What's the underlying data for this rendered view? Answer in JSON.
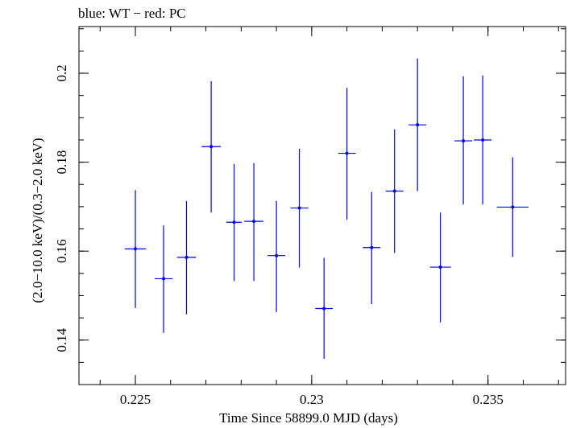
{
  "chart_data": {
    "type": "scatter",
    "title": "blue: WT − red: PC",
    "xlabel": "Time Since 58899.0 MJD (days)",
    "ylabel": "(2.0−10.0 keV)/(0.3−2.0 keV)",
    "xlim": [
      0.2234,
      0.2372
    ],
    "ylim": [
      0.13,
      0.2105
    ],
    "x_ticks": [
      {
        "value": 0.225,
        "label": "0.225"
      },
      {
        "value": 0.23,
        "label": "0.23"
      },
      {
        "value": 0.235,
        "label": "0.235"
      }
    ],
    "y_ticks": [
      {
        "value": 0.14,
        "label": "0.14"
      },
      {
        "value": 0.16,
        "label": "0.16"
      },
      {
        "value": 0.18,
        "label": "0.18"
      },
      {
        "value": 0.2,
        "label": "0.2"
      }
    ],
    "x_minor_step": 0.001,
    "y_minor_step": 0.005,
    "grid": false,
    "colors": {
      "series": "#0000ff",
      "axes": "#000000"
    },
    "series": [
      {
        "color": "#0000ff",
        "points": [
          {
            "x": 0.225,
            "xerr": 0.0003,
            "y": 0.1605,
            "ylo": 0.1472,
            "yhi": 0.1737
          },
          {
            "x": 0.2258,
            "xerr": 0.00025,
            "y": 0.1538,
            "ylo": 0.1416,
            "yhi": 0.1658
          },
          {
            "x": 0.22645,
            "xerr": 0.00027,
            "y": 0.1586,
            "ylo": 0.1458,
            "yhi": 0.1713
          },
          {
            "x": 0.22715,
            "xerr": 0.00027,
            "y": 0.1835,
            "ylo": 0.1687,
            "yhi": 0.1982
          },
          {
            "x": 0.2278,
            "xerr": 0.00022,
            "y": 0.1665,
            "ylo": 0.1533,
            "yhi": 0.1796
          },
          {
            "x": 0.22836,
            "xerr": 0.00027,
            "y": 0.1667,
            "ylo": 0.1533,
            "yhi": 0.1798
          },
          {
            "x": 0.229,
            "xerr": 0.00025,
            "y": 0.159,
            "ylo": 0.1463,
            "yhi": 0.1713
          },
          {
            "x": 0.22965,
            "xerr": 0.00025,
            "y": 0.1697,
            "ylo": 0.1563,
            "yhi": 0.183
          },
          {
            "x": 0.23035,
            "xerr": 0.00025,
            "y": 0.1471,
            "ylo": 0.1358,
            "yhi": 0.1585
          },
          {
            "x": 0.231,
            "xerr": 0.00025,
            "y": 0.182,
            "ylo": 0.1671,
            "yhi": 0.1967
          },
          {
            "x": 0.2317,
            "xerr": 0.00025,
            "y": 0.1608,
            "ylo": 0.1481,
            "yhi": 0.1733
          },
          {
            "x": 0.23235,
            "xerr": 0.00025,
            "y": 0.1735,
            "ylo": 0.1596,
            "yhi": 0.1874
          },
          {
            "x": 0.233,
            "xerr": 0.00025,
            "y": 0.1884,
            "ylo": 0.1735,
            "yhi": 0.2033
          },
          {
            "x": 0.23365,
            "xerr": 0.0003,
            "y": 0.1564,
            "ylo": 0.144,
            "yhi": 0.1687
          },
          {
            "x": 0.2343,
            "xerr": 0.00025,
            "y": 0.1848,
            "ylo": 0.1705,
            "yhi": 0.1993
          },
          {
            "x": 0.23485,
            "xerr": 0.00025,
            "y": 0.185,
            "ylo": 0.1705,
            "yhi": 0.1995
          },
          {
            "x": 0.2357,
            "xerr": 0.00045,
            "y": 0.1699,
            "ylo": 0.1587,
            "yhi": 0.1811
          }
        ]
      }
    ]
  }
}
